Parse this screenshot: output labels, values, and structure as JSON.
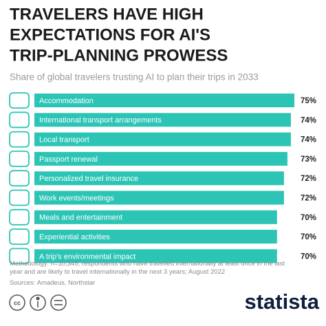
{
  "chart_data": {
    "type": "bar",
    "title": [
      "TRAVELERS HAVE HIGH",
      "EXPECTATIONS FOR AI'S",
      "TRIP-PLANNING PROWESS"
    ],
    "subtitle": "Share of global travelers trusting AI to plan their trips in 2033",
    "categories": [
      "Accommodation",
      "International transport arrangements",
      "Local transport",
      "Passport renewal",
      "Personalized travel insurance",
      "Work events/meetings",
      "Meals and entertainment",
      "Experiential activities",
      "A trip's environmental impact"
    ],
    "values": [
      75,
      74,
      74,
      73,
      72,
      72,
      70,
      70,
      70
    ],
    "value_labels": [
      "75%",
      "74%",
      "74%",
      "73%",
      "72%",
      "72%",
      "70%",
      "70%",
      "70%"
    ],
    "color": "#2cc5b5",
    "note": "Methodology: n=10,345; respondents who have travelled internationally at least once in the last year and are likely to travel internationally in the next 3 years; August 2022",
    "source": "Sources: Amadeus, Northstar",
    "brand": "statista"
  }
}
